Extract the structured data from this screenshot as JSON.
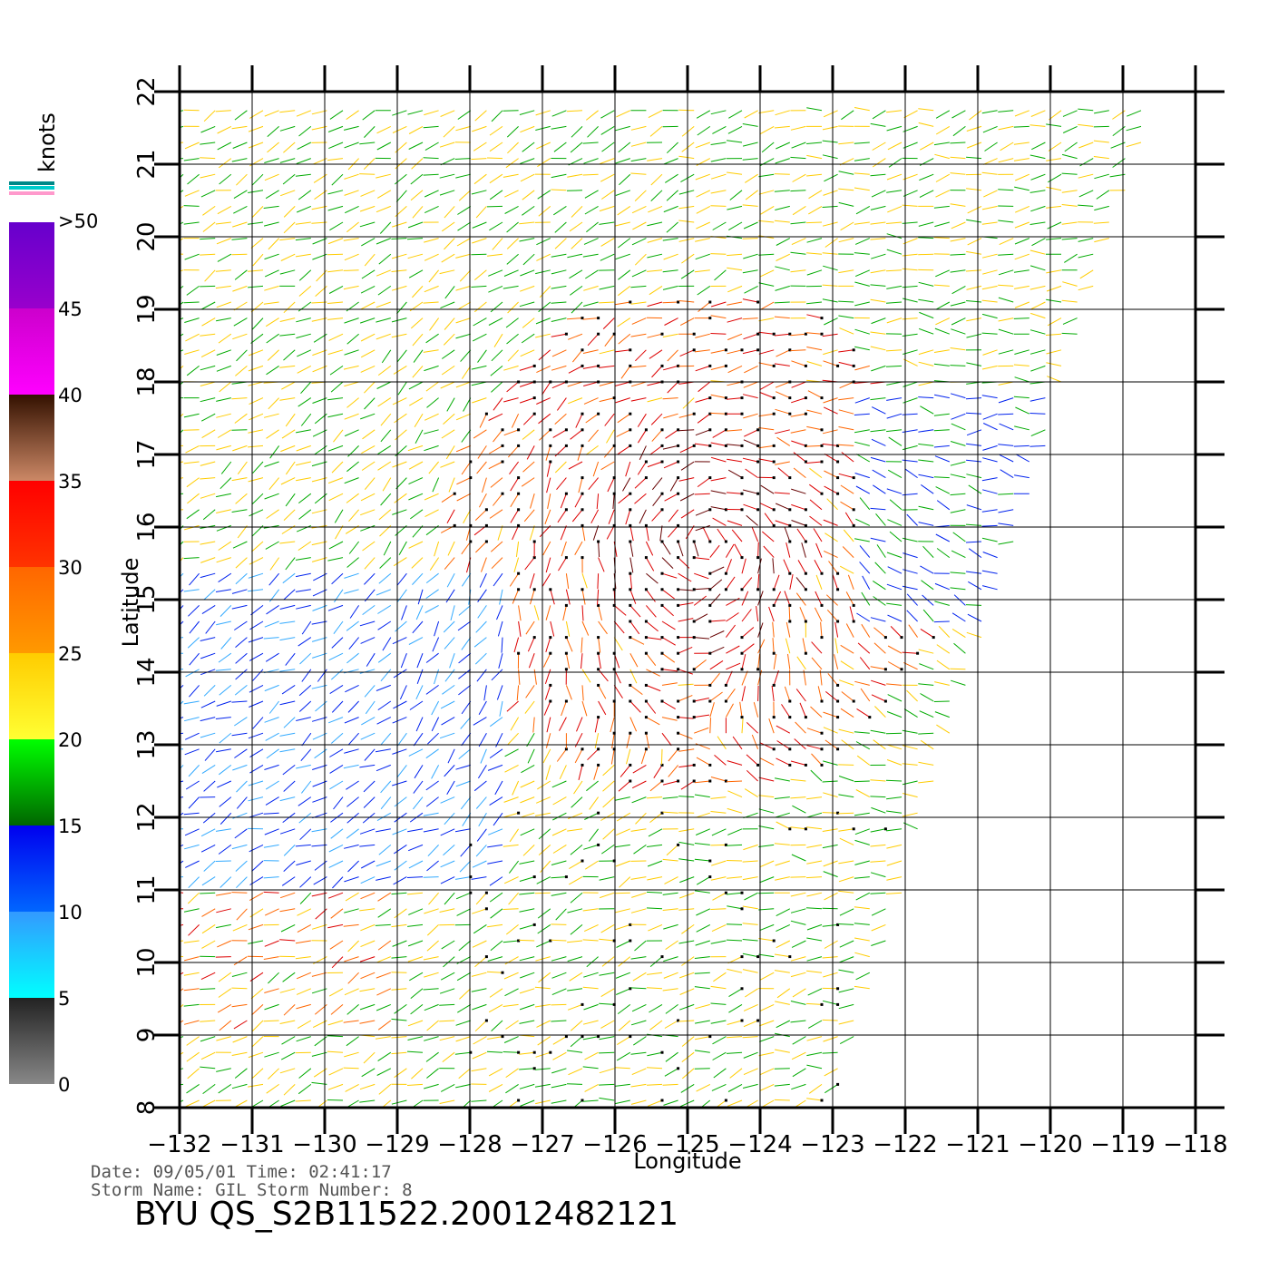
{
  "chart_data": {
    "type": "vector_field",
    "xlabel": "Longitude",
    "ylabel": "Latitude",
    "xlim": [
      -132,
      -117.5
    ],
    "ylim": [
      8,
      22
    ],
    "x_ticks": [
      "-132",
      "-131",
      "-130",
      "-129",
      "-128",
      "-127",
      "-126",
      "-125",
      "-124",
      "-123",
      "-122",
      "-121",
      "-120",
      "-119",
      "-118"
    ],
    "y_ticks": [
      "8",
      "9",
      "10",
      "11",
      "12",
      "13",
      "14",
      "15",
      "16",
      "17",
      "18",
      "19",
      "20",
      "21",
      "22"
    ],
    "grid": true,
    "swath_corners": [
      [
        -132,
        8
      ],
      [
        -123,
        8
      ],
      [
        -118.5,
        22
      ],
      [
        -132,
        22
      ]
    ],
    "storm_center": {
      "lon": -124.8,
      "lat": 15.8
    },
    "colorbar": {
      "unit_label": "knots",
      "labels": [
        "0",
        "5",
        "10",
        "15",
        "20",
        "25",
        "30",
        "35",
        "40",
        "45",
        ">50"
      ],
      "bands": [
        {
          "range": "0-5",
          "colors": [
            "#888888",
            "#222222"
          ]
        },
        {
          "range": "5-10",
          "colors": [
            "#00ffff",
            "#3399ff"
          ]
        },
        {
          "range": "10-15",
          "colors": [
            "#0066ff",
            "#0000ee"
          ]
        },
        {
          "range": "15-20",
          "colors": [
            "#006600",
            "#00ff00"
          ]
        },
        {
          "range": "20-25",
          "colors": [
            "#ffff33",
            "#ffcc00"
          ]
        },
        {
          "range": "25-30",
          "colors": [
            "#ff9900",
            "#ff6600"
          ]
        },
        {
          "range": "30-35",
          "colors": [
            "#ff3300",
            "#ff0000"
          ]
        },
        {
          "range": "35-40",
          "colors": [
            "#cc8866",
            "#331100"
          ]
        },
        {
          "range": "40-45",
          "colors": [
            "#ff00ff",
            "#cc00cc"
          ]
        },
        {
          "range": "45-50",
          "colors": [
            "#9900cc",
            "#6600cc"
          ]
        }
      ]
    }
  },
  "metadata": {
    "date_line": "Date: 09/05/01   Time: 02:41:17",
    "storm_line": "Storm  Name: GIL   Storm  Number: 8",
    "title": "BYU  QS_S2B11522.20012482121"
  }
}
